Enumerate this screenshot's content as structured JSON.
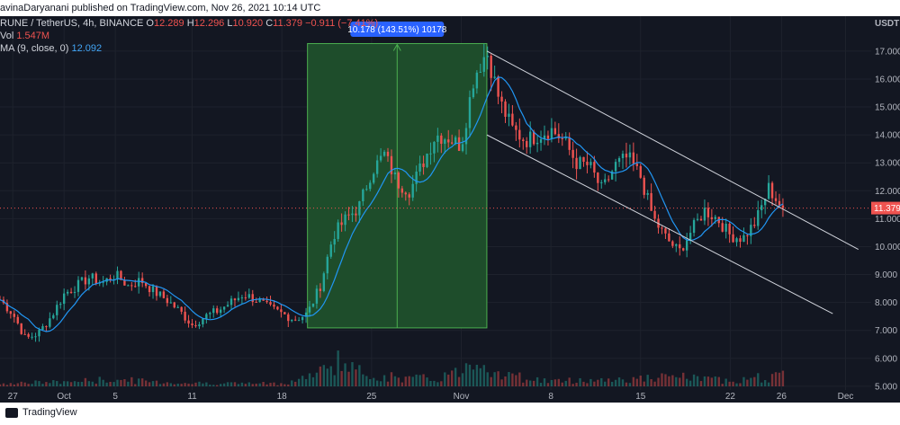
{
  "header": {
    "publish_line": "avinaDaryanani published on TradingView.com, Nov 26, 2021 10:14 UTC"
  },
  "legend": {
    "symbol_line": "RUNE / TetherUS, 4h, BINANCE",
    "o_label": "O",
    "o_value": "12.289",
    "h_label": "H",
    "h_value": "12.296",
    "l_label": "L",
    "l_value": "10.920",
    "c_label": "C",
    "c_value": "11.379",
    "change": "−0.911 (−7.41%)",
    "vol_label": "Vol",
    "vol_value": "1.547M",
    "ma_label": "MA (9, close, 0)",
    "ma_value": "12.092"
  },
  "footer": {
    "brand": "TradingView"
  },
  "colors": {
    "background": "#131722",
    "up": "#26a69a",
    "down": "#ef5350",
    "ma": "#2196f3",
    "range_fill": "#1e4d2b",
    "range_badge": "#2962ff",
    "channel": "#d1d4dc",
    "price_line": "#ef5350"
  },
  "chart_data": {
    "type": "candlestick",
    "timeframe": "4h",
    "currency": "USDT",
    "y_range": [
      4.9,
      17.8
    ],
    "y_ticks": [
      "17.000",
      "16.000",
      "15.000",
      "14.000",
      "13.000",
      "12.000",
      "11.000",
      "10.000",
      "9.000",
      "8.000",
      "7.000",
      "6.000",
      "5.000"
    ],
    "y_tick_values": [
      17,
      16,
      15,
      14,
      13,
      12,
      11,
      10,
      9,
      8,
      7,
      6,
      5
    ],
    "x_range_days": [
      "2021-09-26",
      "2021-12-03"
    ],
    "x_ticks": [
      {
        "label": "27",
        "date": "2021-09-27"
      },
      {
        "label": "Oct",
        "date": "2021-10-01"
      },
      {
        "label": "5",
        "date": "2021-10-05"
      },
      {
        "label": "11",
        "date": "2021-10-11"
      },
      {
        "label": "18",
        "date": "2021-10-18"
      },
      {
        "label": "25",
        "date": "2021-10-25"
      },
      {
        "label": "Nov",
        "date": "2021-11-01"
      },
      {
        "label": "8",
        "date": "2021-11-08"
      },
      {
        "label": "15",
        "date": "2021-11-15"
      },
      {
        "label": "22",
        "date": "2021-11-22"
      },
      {
        "label": "26",
        "date": "2021-11-26"
      },
      {
        "label": "Dec",
        "date": "2021-12-01"
      }
    ],
    "last_price": "11.379",
    "last_price_value": 11.379,
    "price_path": [
      [
        "2021-09-26",
        8.1
      ],
      [
        "2021-09-27",
        7.6
      ],
      [
        "2021-09-28",
        6.7
      ],
      [
        "2021-09-29",
        6.9
      ],
      [
        "2021-09-30",
        7.5
      ],
      [
        "2021-10-01",
        8.3
      ],
      [
        "2021-10-02",
        8.6
      ],
      [
        "2021-10-03",
        8.9
      ],
      [
        "2021-10-04",
        8.7
      ],
      [
        "2021-10-05",
        9.0
      ],
      [
        "2021-10-06",
        8.6
      ],
      [
        "2021-10-07",
        8.8
      ],
      [
        "2021-10-08",
        8.4
      ],
      [
        "2021-10-09",
        8.1
      ],
      [
        "2021-10-10",
        7.7
      ],
      [
        "2021-10-11",
        7.2
      ],
      [
        "2021-10-12",
        7.5
      ],
      [
        "2021-10-13",
        7.7
      ],
      [
        "2021-10-14",
        8.0
      ],
      [
        "2021-10-15",
        8.3
      ],
      [
        "2021-10-16",
        8.1
      ],
      [
        "2021-10-17",
        7.8
      ],
      [
        "2021-10-18",
        7.6
      ],
      [
        "2021-10-19",
        7.4
      ],
      [
        "2021-10-20",
        7.6
      ],
      [
        "2021-10-21",
        8.6
      ],
      [
        "2021-10-22",
        10.4
      ],
      [
        "2021-10-23",
        11.0
      ],
      [
        "2021-10-24",
        11.4
      ],
      [
        "2021-10-25",
        12.7
      ],
      [
        "2021-10-26",
        13.3
      ],
      [
        "2021-10-27",
        12.3
      ],
      [
        "2021-10-28",
        12.0
      ],
      [
        "2021-10-29",
        13.0
      ],
      [
        "2021-10-30",
        14.0
      ],
      [
        "2021-10-31",
        13.9
      ],
      [
        "2021-11-01",
        13.6
      ],
      [
        "2021-11-02",
        16.1
      ],
      [
        "2021-11-03",
        17.0
      ],
      [
        "2021-11-04",
        15.2
      ],
      [
        "2021-11-05",
        14.2
      ],
      [
        "2021-11-06",
        13.8
      ],
      [
        "2021-11-07",
        14.0
      ],
      [
        "2021-11-08",
        14.2
      ],
      [
        "2021-11-09",
        13.8
      ],
      [
        "2021-11-10",
        13.0
      ],
      [
        "2021-11-11",
        12.9
      ],
      [
        "2021-11-12",
        12.0
      ],
      [
        "2021-11-13",
        12.9
      ],
      [
        "2021-11-14",
        13.2
      ],
      [
        "2021-11-15",
        12.5
      ],
      [
        "2021-11-16",
        11.0
      ],
      [
        "2021-11-17",
        10.3
      ],
      [
        "2021-11-18",
        9.8
      ],
      [
        "2021-11-19",
        10.6
      ],
      [
        "2021-11-20",
        11.3
      ],
      [
        "2021-11-21",
        11.0
      ],
      [
        "2021-11-22",
        10.4
      ],
      [
        "2021-11-23",
        10.3
      ],
      [
        "2021-11-24",
        10.9
      ],
      [
        "2021-11-25",
        12.1
      ],
      [
        "2021-11-26",
        11.4
      ]
    ],
    "volume_path": [
      [
        "2021-09-26",
        0.1
      ],
      [
        "2021-09-30",
        0.12
      ],
      [
        "2021-10-05",
        0.2
      ],
      [
        "2021-10-10",
        0.1
      ],
      [
        "2021-10-15",
        0.09
      ],
      [
        "2021-10-18",
        0.08
      ],
      [
        "2021-10-21",
        0.4
      ],
      [
        "2021-10-22",
        0.85
      ],
      [
        "2021-10-24",
        0.4
      ],
      [
        "2021-10-27",
        0.25
      ],
      [
        "2021-10-30",
        0.22
      ],
      [
        "2021-11-01",
        0.45
      ],
      [
        "2021-11-02",
        0.95
      ],
      [
        "2021-11-04",
        0.35
      ],
      [
        "2021-11-08",
        0.15
      ],
      [
        "2021-11-12",
        0.2
      ],
      [
        "2021-11-15",
        0.22
      ],
      [
        "2021-11-18",
        0.28
      ],
      [
        "2021-11-21",
        0.18
      ],
      [
        "2021-11-24",
        0.25
      ],
      [
        "2021-11-26",
        0.3
      ]
    ],
    "range_measurement": {
      "label": "10.178 (143.51%) 10178",
      "start_date": "2021-10-20",
      "end_date": "2021-11-03",
      "low": 7.09,
      "high": 17.27
    },
    "channel": {
      "upper": [
        [
          "2021-11-03",
          17.0
        ],
        [
          "2021-12-02",
          9.9
        ]
      ],
      "lower": [
        [
          "2021-11-03",
          14.0
        ],
        [
          "2021-11-30",
          7.6
        ]
      ]
    }
  }
}
